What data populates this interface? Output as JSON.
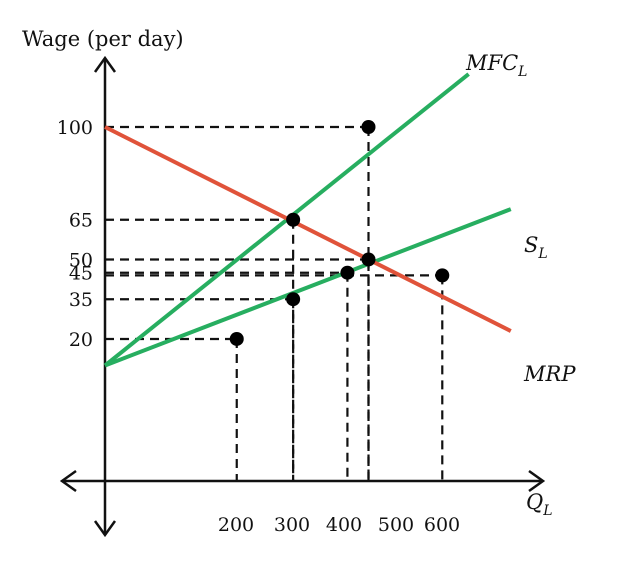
{
  "chart_data": {
    "type": "line",
    "ylabel": "Wage (per day)",
    "xlabel": "Q",
    "xlabel_sub": "L",
    "y_ticks": [
      100,
      65,
      50,
      45,
      35,
      20
    ],
    "x_ticks": [
      200,
      300,
      400,
      500,
      600
    ],
    "xlim": [
      0,
      850
    ],
    "ylim": [
      -33,
      120
    ],
    "grid": false,
    "series": [
      {
        "name": "MFC",
        "sub": "L",
        "color": "#27ae60",
        "points": [
          [
            0,
            10
          ],
          [
            690,
            120
          ]
        ]
      },
      {
        "name": "S",
        "sub": "L",
        "color": "#27ae60",
        "points": [
          [
            0,
            10
          ],
          [
            770,
            69
          ]
        ]
      },
      {
        "name": "MRP",
        "sub": "",
        "color": "#e0533a",
        "points": [
          [
            0,
            100
          ],
          [
            770,
            23
          ]
        ]
      }
    ],
    "marked_points": [
      {
        "x": 500,
        "y": 100
      },
      {
        "x": 357,
        "y": 65
      },
      {
        "x": 500,
        "y": 50
      },
      {
        "x": 460,
        "y": 45
      },
      {
        "x": 640,
        "y": 44
      },
      {
        "x": 357,
        "y": 35
      },
      {
        "x": 250,
        "y": 20
      }
    ],
    "guides": [
      {
        "x": 500,
        "y": 100
      },
      {
        "x": 357,
        "y": 65
      },
      {
        "x": 500,
        "y": 50
      },
      {
        "x": 460,
        "y": 45
      },
      {
        "x": 640,
        "y": 44
      },
      {
        "x": 357,
        "y": 35
      },
      {
        "x": 250,
        "y": 20
      }
    ]
  }
}
